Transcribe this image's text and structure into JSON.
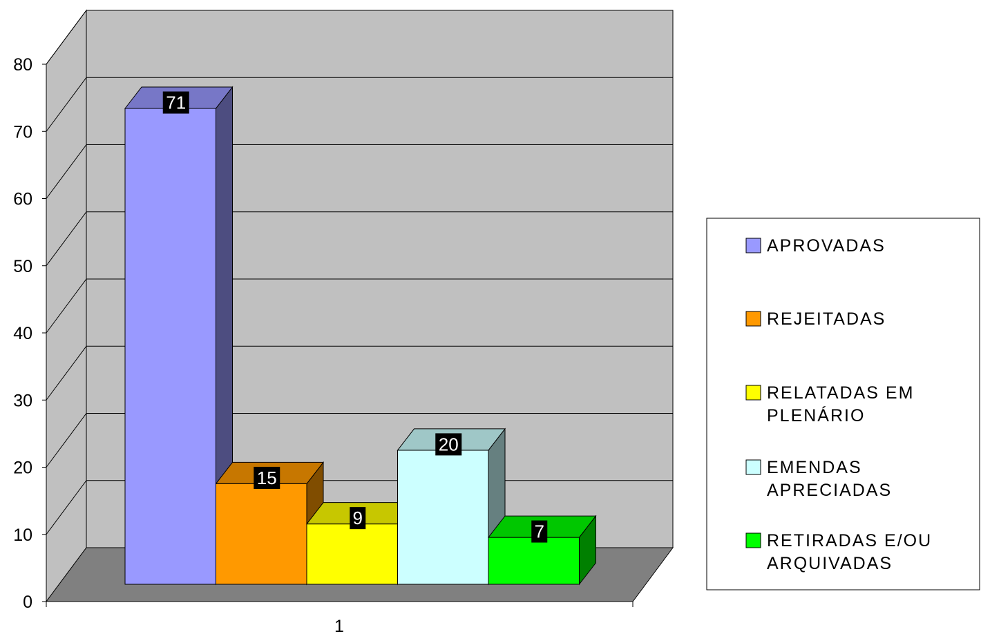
{
  "chart_data": {
    "type": "bar",
    "title": "",
    "xlabel": "",
    "ylabel": "",
    "categories": [
      "1"
    ],
    "ylim": [
      0,
      80
    ],
    "yticks": [
      0,
      10,
      20,
      30,
      40,
      50,
      60,
      70,
      80
    ],
    "grid": true,
    "three_d": true,
    "legend_position": "right",
    "series": [
      {
        "name": "APROVADAS",
        "values": [
          71
        ],
        "color": "#9999FF"
      },
      {
        "name": "REJEITADAS",
        "values": [
          15
        ],
        "color": "#FF9900"
      },
      {
        "name": "RELATADAS EM PLENÁRIO",
        "values": [
          9
        ],
        "color": "#FFFF00"
      },
      {
        "name": "EMENDAS APRECIADAS",
        "values": [
          20
        ],
        "color": "#CCFFFF"
      },
      {
        "name": "RETIRADAS E/OU ARQUIVADAS",
        "values": [
          7
        ],
        "color": "#00FF00"
      }
    ],
    "data_labels": [
      "71",
      "15",
      "9",
      "20",
      "7"
    ],
    "colors": {
      "wall": "#C0C0C0",
      "floor": "#808080",
      "gridline": "#000000",
      "label_background": "#000000",
      "label_text": "#FFFFFF"
    }
  }
}
